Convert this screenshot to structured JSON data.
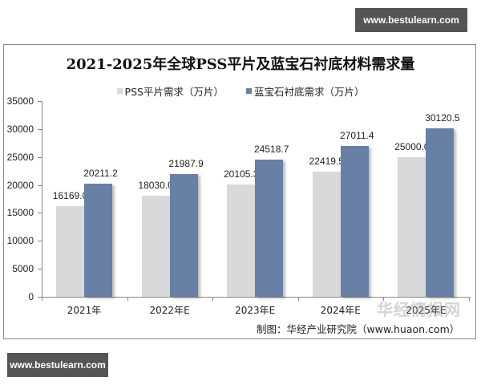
{
  "watermarks": {
    "top": "www.bestulearn.com",
    "bottom": "www.bestulearn.com",
    "logo": "华经情报网"
  },
  "source_note": "制图：华经产业研究院（www.huaon.com）",
  "chart_data": {
    "type": "bar",
    "title": "2021-2025年全球PSS平片及蓝宝石衬底材料需求量",
    "xlabel": "",
    "ylabel": "",
    "categories": [
      "2021年",
      "2022年E",
      "2023年E",
      "2024年E",
      "2025年E"
    ],
    "series": [
      {
        "name": "PSS平片需求（万片）",
        "color": "#d9d9d9",
        "values": [
          16169.0,
          18030.0,
          20105.3,
          22419.5,
          25000.0
        ],
        "labels": [
          "16169.0",
          "18030.0",
          "20105.3",
          "22419.5",
          "25000.0"
        ]
      },
      {
        "name": "蓝宝石衬底需求（万片）",
        "color": "#687fa6",
        "values": [
          20211.2,
          21987.9,
          24518.7,
          27011.4,
          30120.5
        ],
        "labels": [
          "20211.2",
          "21987.9",
          "24518.7",
          "27011.4",
          "30120.5"
        ]
      }
    ],
    "ylim": [
      0,
      35000
    ],
    "yticks": [
      "0",
      "5000",
      "10000",
      "15000",
      "20000",
      "25000",
      "30000",
      "35000"
    ],
    "grid": false,
    "legend_position": "top"
  }
}
